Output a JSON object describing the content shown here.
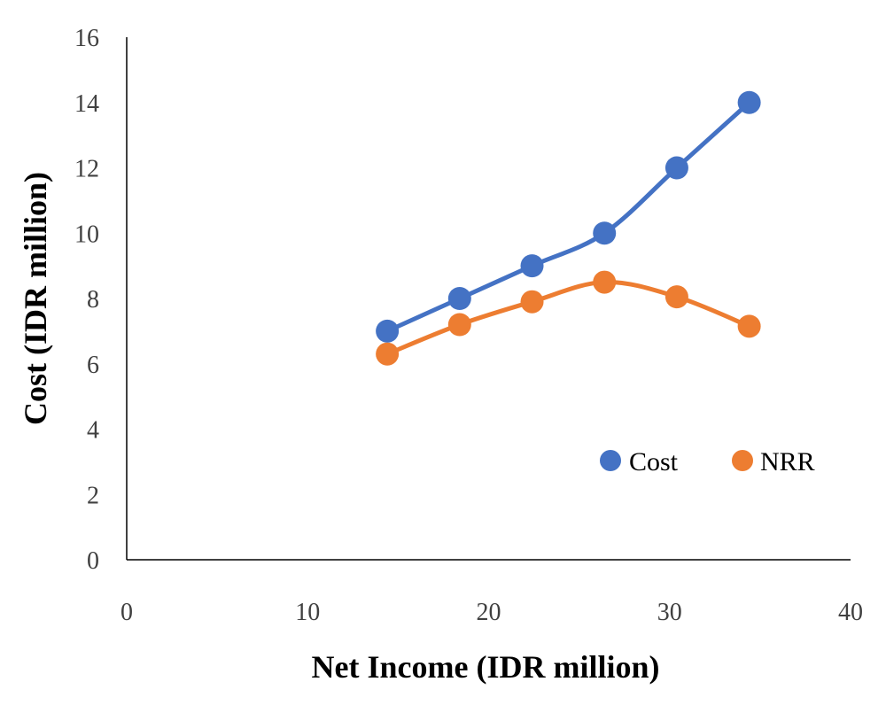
{
  "chart_data": {
    "type": "scatter",
    "title": "",
    "xlabel": "Net Income (IDR million)",
    "ylabel": "Cost (IDR million)",
    "xlim": [
      0,
      40
    ],
    "ylim": [
      0,
      16
    ],
    "xticks": [
      "0",
      "10",
      "20",
      "30",
      "40"
    ],
    "yticks": [
      "0",
      "2",
      "4",
      "6",
      "8",
      "10",
      "12",
      "14",
      "16"
    ],
    "grid": false,
    "legend_position": "lower-right",
    "series": [
      {
        "name": "Cost",
        "color": "#4472C4",
        "x": [
          14.4,
          18.4,
          22.4,
          26.4,
          30.4,
          34.4
        ],
        "y": [
          7.0,
          8.0,
          9.0,
          10.0,
          12.0,
          14.0
        ]
      },
      {
        "name": "NRR",
        "color": "#ED7D31",
        "x": [
          14.4,
          18.4,
          22.4,
          26.4,
          30.4,
          34.4
        ],
        "y": [
          6.3,
          7.2,
          7.9,
          8.5,
          8.05,
          7.15
        ]
      }
    ]
  }
}
